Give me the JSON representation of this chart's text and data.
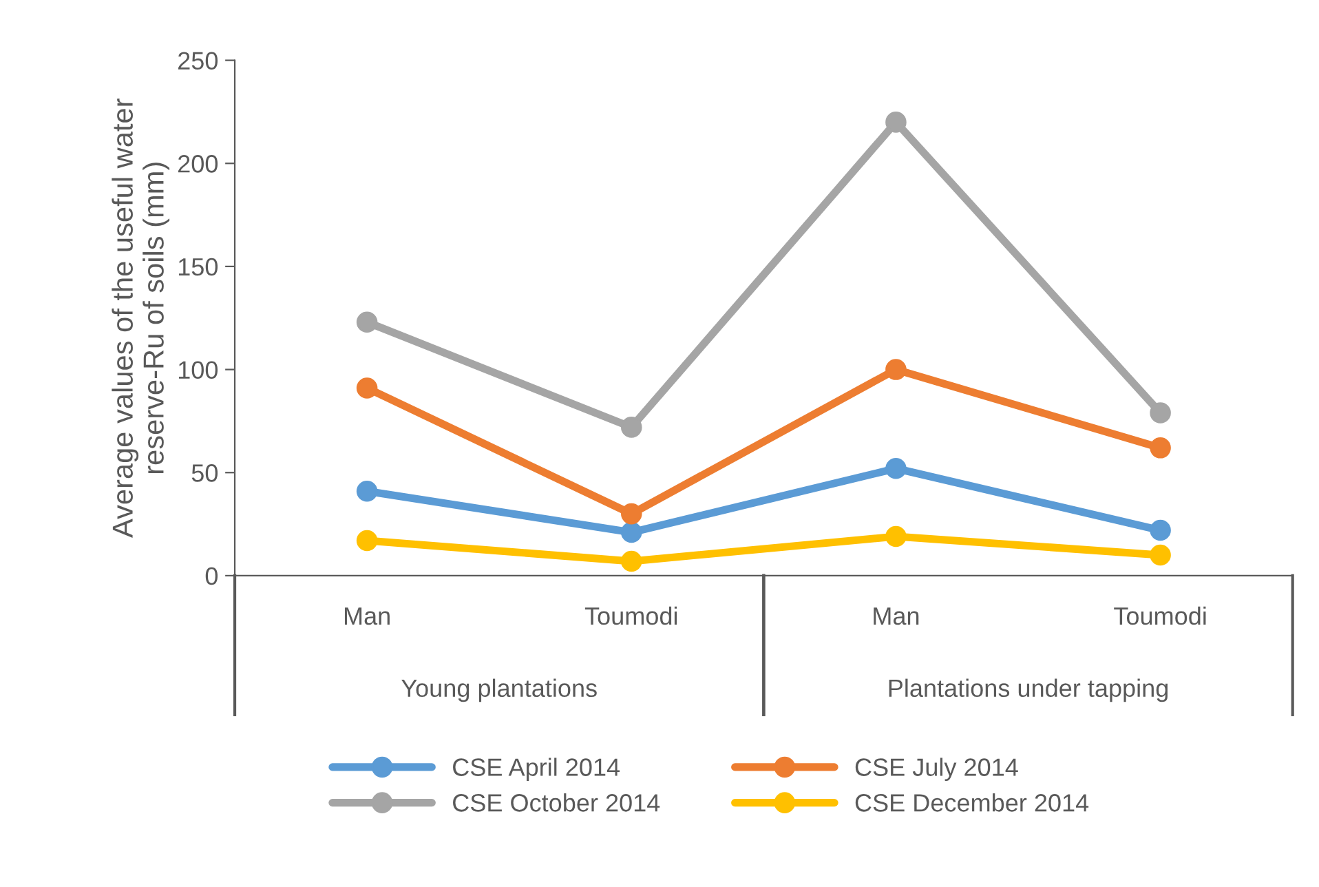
{
  "chart_data": {
    "type": "line",
    "ylabel": "Average values of the useful water\nreserve-Ru of soils (mm)",
    "categories": [
      "Man",
      "Toumodi",
      "Man",
      "Toumodi"
    ],
    "annotations": [
      "Young plantations",
      "Plantations under tapping"
    ],
    "series": [
      {
        "name": "CSE April 2014",
        "color": "#5b9bd5",
        "values": [
          41,
          21,
          52,
          22
        ]
      },
      {
        "name": "CSE July 2014",
        "color": "#ed7d31",
        "values": [
          91,
          30,
          100,
          62
        ]
      },
      {
        "name": "CSE October 2014",
        "color": "#a5a5a5",
        "values": [
          123,
          72,
          220,
          79
        ]
      },
      {
        "name": "CSE December 2014",
        "color": "#ffc000",
        "values": [
          17,
          7,
          19,
          10
        ]
      }
    ],
    "ylim": [
      0,
      250
    ],
    "yticks": [
      0,
      50,
      100,
      150,
      200,
      250
    ],
    "grid": false,
    "legend": "bottom",
    "marker": "circle",
    "line_style": "solid"
  }
}
